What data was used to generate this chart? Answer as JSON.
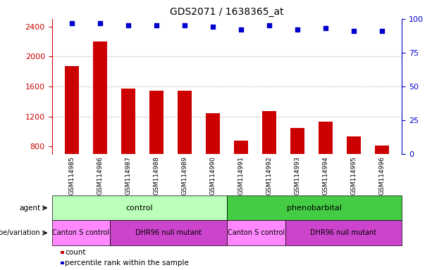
{
  "title": "GDS2071 / 1638365_at",
  "samples": [
    "GSM114985",
    "GSM114986",
    "GSM114987",
    "GSM114988",
    "GSM114989",
    "GSM114990",
    "GSM114991",
    "GSM114992",
    "GSM114993",
    "GSM114994",
    "GSM114995",
    "GSM114996"
  ],
  "counts": [
    1870,
    2200,
    1575,
    1545,
    1540,
    1240,
    880,
    1270,
    1050,
    1130,
    930,
    810
  ],
  "percentiles": [
    97,
    97,
    95,
    95,
    95,
    94,
    92,
    95,
    92,
    93,
    91,
    91
  ],
  "ylim_left": [
    700,
    2500
  ],
  "ylim_right": [
    0,
    100
  ],
  "yticks_left": [
    800,
    1200,
    1600,
    2000,
    2400
  ],
  "yticks_right": [
    0,
    25,
    50,
    75,
    100
  ],
  "bar_color": "#cc0000",
  "dot_color": "#0000cc",
  "grid_color": "#aaaaaa",
  "agent_control_color": "#bbffbb",
  "agent_phenobarbital_color": "#44cc44",
  "genotype_canton_color": "#ff88ff",
  "genotype_dhr96_color": "#cc44cc",
  "agent_control_label": "control",
  "agent_phenobarbital_label": "phenobarbital",
  "genotype_canton_label": "Canton S control",
  "genotype_dhr96_label": "DHR96 null mutant",
  "agent_row_label": "agent",
  "genotype_row_label": "genotype/variation",
  "legend_count": "count",
  "legend_percentile": "percentile rank within the sample",
  "xtick_bg_color": "#dddddd",
  "bar_bottom": 700
}
